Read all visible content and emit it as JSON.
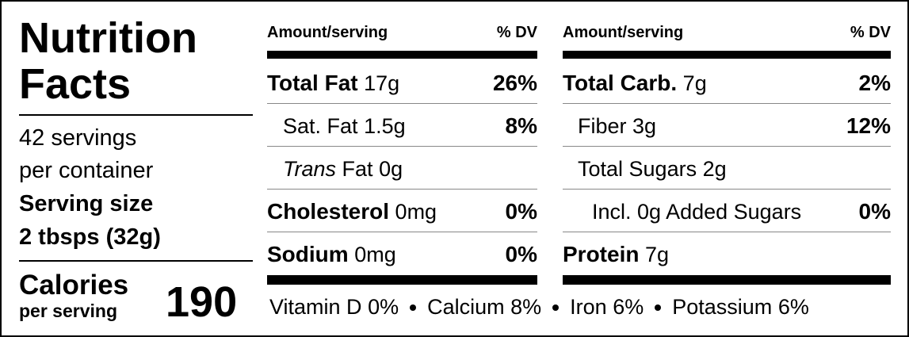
{
  "title": [
    "Nutrition",
    "Facts"
  ],
  "servings": [
    "42 servings",
    "per container"
  ],
  "serving_size": [
    "Serving size",
    "2 tbsps (32g)"
  ],
  "calories": {
    "label": "Calories",
    "sublabel": "per serving",
    "value": "190"
  },
  "columns": [
    {
      "header": [
        "Amount/serving",
        "% DV"
      ],
      "rows": [
        {
          "name": "Total Fat",
          "amount": "17g",
          "dv": "26%"
        },
        {
          "name": "Sat. Fat",
          "amount": "1.5g",
          "dv": "8%"
        },
        {
          "name_italic": "Trans",
          "name": "Fat",
          "amount": "0g"
        },
        {
          "name": "Cholesterol",
          "amount": "0mg",
          "dv": "0%"
        },
        {
          "name": "Sodium",
          "amount": "0mg",
          "dv": "0%"
        }
      ]
    },
    {
      "header": [
        "Amount/serving",
        "% DV"
      ],
      "rows": [
        {
          "name": "Total Carb.",
          "amount": "7g",
          "dv": "2%"
        },
        {
          "name": "Fiber",
          "amount": "3g",
          "dv": "12%"
        },
        {
          "name": "Total Sugars",
          "amount": "2g"
        },
        {
          "name": "Incl. 0g Added Sugars",
          "dv": "0%"
        },
        {
          "name": "Protein",
          "amount": "7g"
        }
      ]
    }
  ],
  "vitamins": [
    {
      "name": "Vitamin D",
      "value": "0%"
    },
    {
      "name": "Calcium",
      "value": "8%"
    },
    {
      "name": "Iron",
      "value": "6%"
    },
    {
      "name": "Potassium",
      "value": "6%"
    }
  ]
}
